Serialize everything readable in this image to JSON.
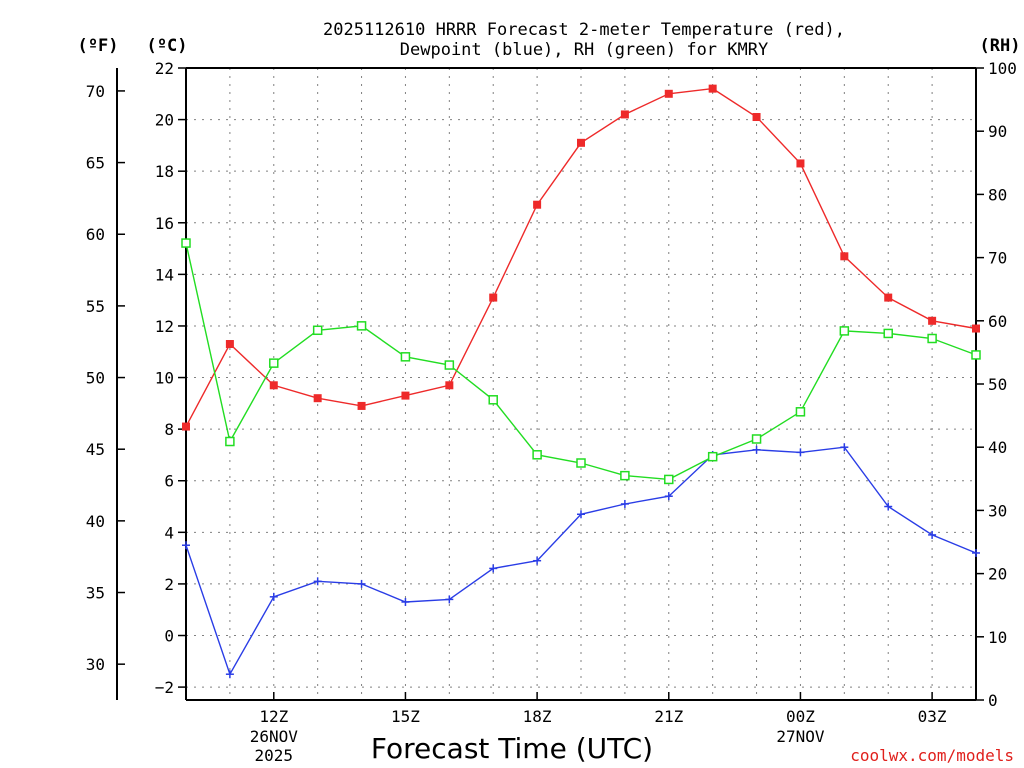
{
  "chart_data": {
    "type": "line",
    "title_lines": [
      "2025112610 HRRR Forecast 2-meter Temperature (red),",
      "Dewpoint (blue), RH (green) for KMRY"
    ],
    "xlabel": "Forecast Time (UTC)",
    "x_hours": [
      10,
      11,
      12,
      13,
      14,
      15,
      16,
      17,
      18,
      19,
      20,
      21,
      22,
      23,
      24,
      25,
      26,
      27,
      28
    ],
    "xlim": [
      10,
      28
    ],
    "x_ticks": [
      {
        "hour": 12,
        "label": "12Z",
        "sub": [
          "26NOV",
          "2025"
        ]
      },
      {
        "hour": 15,
        "label": "15Z",
        "sub": []
      },
      {
        "hour": 18,
        "label": "18Z",
        "sub": []
      },
      {
        "hour": 21,
        "label": "21Z",
        "sub": []
      },
      {
        "hour": 24,
        "label": "00Z",
        "sub": [
          "27NOV"
        ]
      },
      {
        "hour": 27,
        "label": "03Z",
        "sub": []
      }
    ],
    "left_celsius_axis": {
      "unit": "(ºC)",
      "range": [
        -2.5,
        22
      ],
      "ticks": [
        -2,
        0,
        2,
        4,
        6,
        8,
        10,
        12,
        14,
        16,
        18,
        20,
        22
      ],
      "tick_labels": [
        "−2",
        "0",
        "2",
        "4",
        "6",
        "8",
        "10",
        "12",
        "14",
        "16",
        "18",
        "20",
        "22"
      ]
    },
    "left_fahrenheit_axis": {
      "unit": "(ºF)",
      "ticks": [
        30,
        35,
        40,
        45,
        50,
        55,
        60,
        65,
        70
      ],
      "tick_labels": [
        "30",
        "35",
        "40",
        "45",
        "50",
        "55",
        "60",
        "65",
        "70"
      ]
    },
    "right_rh_axis": {
      "unit": "(RH)",
      "range": [
        0,
        100
      ],
      "ticks": [
        0,
        10,
        20,
        30,
        40,
        50,
        60,
        70,
        80,
        90,
        100
      ],
      "tick_labels": [
        "0",
        "10",
        "20",
        "30",
        "40",
        "50",
        "60",
        "70",
        "80",
        "90",
        "100"
      ]
    },
    "grid": true,
    "series": [
      {
        "name": "2-meter Temperature",
        "axis": "celsius",
        "color": "#ee2a2a",
        "marker": "filled-square",
        "values": [
          8.1,
          11.3,
          9.7,
          9.2,
          8.9,
          9.3,
          9.7,
          13.1,
          16.7,
          19.1,
          20.2,
          21.0,
          21.2,
          20.1,
          18.3,
          14.7,
          13.1,
          12.2,
          11.9
        ]
      },
      {
        "name": "Dewpoint",
        "axis": "celsius",
        "color": "#2a3de6",
        "marker": "plus",
        "values": [
          3.5,
          -1.5,
          1.5,
          2.1,
          2.0,
          1.3,
          1.4,
          2.6,
          2.9,
          4.7,
          5.1,
          5.4,
          7.0,
          7.2,
          7.1,
          7.3,
          5.0,
          3.9,
          3.2
        ]
      },
      {
        "name": "Relative Humidity",
        "axis": "rh",
        "color": "#22dd22",
        "marker": "open-square",
        "values": [
          72.3,
          40.9,
          53.3,
          58.5,
          59.2,
          54.3,
          53.0,
          47.5,
          38.8,
          37.5,
          35.5,
          34.9,
          38.5,
          41.3,
          45.6,
          58.4,
          58.0,
          57.2,
          54.6
        ]
      }
    ],
    "credit": "coolwx.com/models"
  }
}
